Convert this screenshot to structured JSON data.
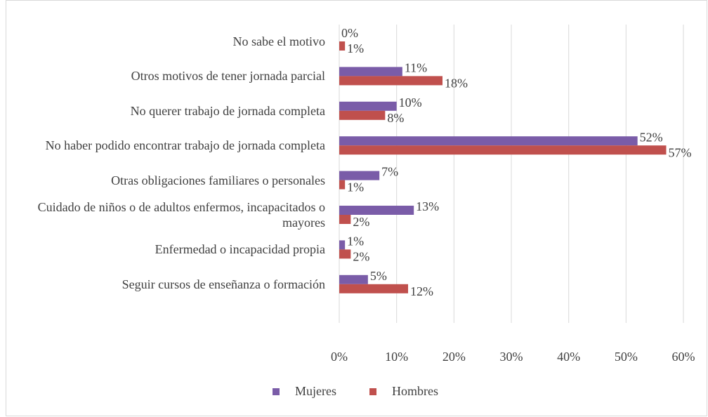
{
  "chart_data": {
    "type": "hbar",
    "categories": [
      "No sabe el motivo",
      "Otros motivos de tener jornada parcial",
      "No querer trabajo de jornada completa",
      "No haber podido encontrar trabajo de jornada completa",
      "Otras obligaciones familiares o personales",
      "Cuidado de niños o de adultos enfermos, incapacitados o mayores",
      "Enfermedad o incapacidad propia",
      "Seguir cursos de enseñanza o formación"
    ],
    "series": [
      {
        "name": "Mujeres",
        "color": "#7a5ca8",
        "values": [
          0,
          11,
          10,
          52,
          7,
          13,
          1,
          5
        ],
        "value_labels": [
          "0%",
          "11%",
          "10%",
          "52%",
          "7%",
          "13%",
          "1%",
          "5%"
        ]
      },
      {
        "name": "Hombres",
        "color": "#c0504d",
        "values": [
          1,
          18,
          8,
          57,
          1,
          2,
          2,
          12
        ],
        "value_labels": [
          "1%",
          "18%",
          "8%",
          "57%",
          "1%",
          "2%",
          "2%",
          "12%"
        ]
      }
    ],
    "xlim": [
      0,
      60
    ],
    "xticks": [
      {
        "value": 0,
        "label": "0%"
      },
      {
        "value": 10,
        "label": "10%"
      },
      {
        "value": 20,
        "label": "20%"
      },
      {
        "value": 30,
        "label": "30%"
      },
      {
        "value": 40,
        "label": "40%"
      },
      {
        "value": 50,
        "label": "50%"
      },
      {
        "value": 60,
        "label": "60%"
      }
    ],
    "grid": true,
    "legend": "bottom"
  }
}
